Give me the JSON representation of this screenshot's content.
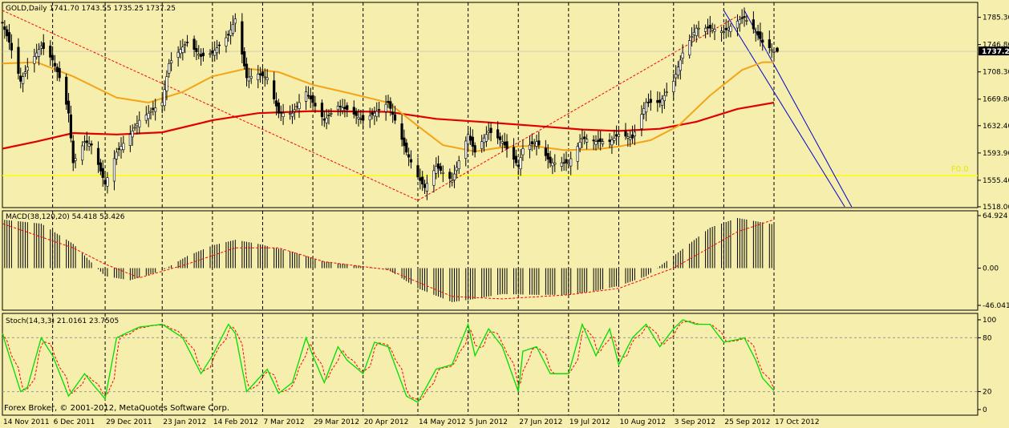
{
  "colors": {
    "background": "#f5eeac",
    "frame": "#000000",
    "candle": "#000000",
    "ma_fast": "#f4a418",
    "ma_slow": "#e00000",
    "channel": "#0000cc",
    "level_line": "#ffff00",
    "fib_line": "#ff0000",
    "macd_signal": "#ff0000",
    "stoch_main": "#00dd00",
    "stoch_signal": "#ff0000",
    "price_marker_bg": "#000000",
    "price_marker_fg": "#ffffff"
  },
  "price_panel": {
    "label": "GOLD,Daily  1741.70 1743.55 1735.25 1737.25",
    "axis_ticks": [
      "1785.30",
      "1746.80",
      "1708.30",
      "1669.80",
      "1632.40",
      "1593.90",
      "1555.40",
      "1518.00"
    ],
    "current_price": "1737.25",
    "level_label": "F0.0"
  },
  "macd_panel": {
    "label": "MACD(38,120,20) 54.418 53.426",
    "axis_ticks": [
      "64.924",
      "0.00",
      "-46.041"
    ]
  },
  "stoch_panel": {
    "label": "Stoch(14,3,3) 21.0161 23.7505",
    "axis_ticks": [
      "100",
      "80",
      "20",
      "0"
    ]
  },
  "copyright": "Forex Broker, © 2001-2012, MetaQuotes Software Corp.",
  "x_axis_labels": [
    "14 Nov 2011",
    "6 Dec 2011",
    "29 Dec 2011",
    "23 Jan 2012",
    "14 Feb 2012",
    "7 Mar 2012",
    "29 Mar 2012",
    "20 Apr 2012",
    "14 May 2012",
    "5 Jun 2012",
    "27 Jun 2012",
    "19 Jul 2012",
    "10 Aug 2012",
    "3 Sep 2012",
    "25 Sep 2012",
    "17 Oct 2012"
  ],
  "chart_data": {
    "type": "candlestick",
    "symbol": "GOLD",
    "timeframe": "Daily",
    "ohlc_last": {
      "open": 1741.7,
      "high": 1743.55,
      "low": 1735.25,
      "close": 1737.25
    },
    "price_ylim": [
      1518.0,
      1795.0
    ],
    "close_path": [
      [
        "14 Nov 2011",
        1777
      ],
      [
        "17 Nov 2011",
        1750
      ],
      [
        "22 Nov 2011",
        1695
      ],
      [
        "25 Nov 2011",
        1715
      ],
      [
        "1 Dec 2011",
        1745
      ],
      [
        "6 Dec 2011",
        1725
      ],
      [
        "9 Dec 2011",
        1700
      ],
      [
        "13 Dec 2011",
        1650
      ],
      [
        "15 Dec 2011",
        1580
      ],
      [
        "20 Dec 2011",
        1610
      ],
      [
        "23 Dec 2011",
        1605
      ],
      [
        "29 Dec 2011",
        1550
      ],
      [
        "3 Jan 2012",
        1595
      ],
      [
        "9 Jan 2012",
        1620
      ],
      [
        "13 Jan 2012",
        1640
      ],
      [
        "23 Jan 2012",
        1665
      ],
      [
        "26 Jan 2012",
        1720
      ],
      [
        "31 Jan 2012",
        1740
      ],
      [
        "3 Feb 2012",
        1750
      ],
      [
        "9 Feb 2012",
        1730
      ],
      [
        "14 Feb 2012",
        1735
      ],
      [
        "21 Feb 2012",
        1760
      ],
      [
        "24 Feb 2012",
        1783
      ],
      [
        "29 Feb 2012",
        1700
      ],
      [
        "5 Mar 2012",
        1705
      ],
      [
        "9 Mar 2012",
        1700
      ],
      [
        "14 Mar 2012",
        1650
      ],
      [
        "20 Mar 2012",
        1650
      ],
      [
        "26 Mar 2012",
        1680
      ],
      [
        "29 Mar 2012",
        1665
      ],
      [
        "3 Apr 2012",
        1640
      ],
      [
        "9 Apr 2012",
        1660
      ],
      [
        "13 Apr 2012",
        1655
      ],
      [
        "20 Apr 2012",
        1640
      ],
      [
        "25 Apr 2012",
        1650
      ],
      [
        "1 May 2012",
        1665
      ],
      [
        "4 May 2012",
        1640
      ],
      [
        "9 May 2012",
        1595
      ],
      [
        "14 May 2012",
        1560
      ],
      [
        "17 May 2012",
        1545
      ],
      [
        "22 May 2012",
        1575
      ],
      [
        "29 May 2012",
        1555
      ],
      [
        "5 Jun 2012",
        1620
      ],
      [
        "8 Jun 2012",
        1595
      ],
      [
        "14 Jun 2012",
        1625
      ],
      [
        "20 Jun 2012",
        1610
      ],
      [
        "27 Jun 2012",
        1575
      ],
      [
        "29 Jun 2012",
        1600
      ],
      [
        "5 Jul 2012",
        1610
      ],
      [
        "11 Jul 2012",
        1580
      ],
      [
        "19 Jul 2012",
        1580
      ],
      [
        "25 Jul 2012",
        1615
      ],
      [
        "31 Jul 2012",
        1610
      ],
      [
        "6 Aug 2012",
        1610
      ],
      [
        "10 Aug 2012",
        1620
      ],
      [
        "16 Aug 2012",
        1615
      ],
      [
        "22 Aug 2012",
        1665
      ],
      [
        "28 Aug 2012",
        1665
      ],
      [
        "3 Sep 2012",
        1695
      ],
      [
        "7 Sep 2012",
        1735
      ],
      [
        "13 Sep 2012",
        1770
      ],
      [
        "19 Sep 2012",
        1770
      ],
      [
        "25 Sep 2012",
        1765
      ],
      [
        "1 Oct 2012",
        1780
      ],
      [
        "4 Oct 2012",
        1785
      ],
      [
        "9 Oct 2012",
        1765
      ],
      [
        "12 Oct 2012",
        1750
      ],
      [
        "17 Oct 2012",
        1737
      ]
    ],
    "ma_fast": [
      [
        "14 Nov 2011",
        1720
      ],
      [
        "29 Nov 2011",
        1722
      ],
      [
        "15 Dec 2011",
        1702
      ],
      [
        "3 Jan 2012",
        1672
      ],
      [
        "17 Jan 2012",
        1665
      ],
      [
        "1 Feb 2012",
        1680
      ],
      [
        "14 Feb 2012",
        1702
      ],
      [
        "29 Feb 2012",
        1713
      ],
      [
        "14 Mar 2012",
        1708
      ],
      [
        "29 Mar 2012",
        1690
      ],
      [
        "13 Apr 2012",
        1679
      ],
      [
        "1 May 2012",
        1665
      ],
      [
        "14 May 2012",
        1632
      ],
      [
        "25 May 2012",
        1605
      ],
      [
        "8 Jun 2012",
        1596
      ],
      [
        "20 Jun 2012",
        1602
      ],
      [
        "3 Jul 2012",
        1604
      ],
      [
        "17 Jul 2012",
        1598
      ],
      [
        "31 Jul 2012",
        1599
      ],
      [
        "10 Aug 2012",
        1603
      ],
      [
        "24 Aug 2012",
        1612
      ],
      [
        "5 Sep 2012",
        1632
      ],
      [
        "19 Sep 2012",
        1675
      ],
      [
        "3 Oct 2012",
        1711
      ],
      [
        "12 Oct 2012",
        1722
      ],
      [
        "17 Oct 2012",
        1722
      ]
    ],
    "ma_slow": [
      [
        "14 Nov 2011",
        1600
      ],
      [
        "29 Nov 2011",
        1610
      ],
      [
        "15 Dec 2011",
        1622
      ],
      [
        "3 Jan 2012",
        1620
      ],
      [
        "23 Jan 2012",
        1623
      ],
      [
        "14 Feb 2012",
        1640
      ],
      [
        "5 Mar 2012",
        1650
      ],
      [
        "29 Mar 2012",
        1653
      ],
      [
        "1 May 2012",
        1652
      ],
      [
        "22 May 2012",
        1642
      ],
      [
        "14 Jun 2012",
        1637
      ],
      [
        "5 Jul 2012",
        1632
      ],
      [
        "25 Jul 2012",
        1627
      ],
      [
        "10 Aug 2012",
        1625
      ],
      [
        "28 Aug 2012",
        1628
      ],
      [
        "13 Sep 2012",
        1638
      ],
      [
        "1 Oct 2012",
        1656
      ],
      [
        "17 Oct 2012",
        1665
      ]
    ],
    "horizontal_level": 1562,
    "fib_lines": [
      [
        [
          "14 Nov 2011",
          1795
        ],
        [
          "14 May 2012",
          1527
        ]
      ],
      [
        [
          "14 May 2012",
          1527
        ],
        [
          "1 Oct 2012",
          1787
        ]
      ]
    ],
    "channel_lines": [
      [
        [
          "25 Sep 2012",
          1795
        ],
        [
          "17 Nov 2012",
          1518
        ]
      ],
      [
        [
          "4 Oct 2012",
          1795
        ],
        [
          "20 Nov 2012",
          1518
        ]
      ]
    ],
    "macd": {
      "params": [
        38,
        120,
        20
      ],
      "main": 54.418,
      "signal": 53.426,
      "ylim": [
        -46.041,
        64.924
      ],
      "histogram_path": [
        [
          "14 Nov 2011",
          60
        ],
        [
          "1 Dec 2011",
          55
        ],
        [
          "15 Dec 2011",
          30
        ],
        [
          "29 Dec 2011",
          -10
        ],
        [
          "9 Jan 2012",
          -15
        ],
        [
          "23 Jan 2012",
          -3
        ],
        [
          "3 Feb 2012",
          15
        ],
        [
          "14 Feb 2012",
          28
        ],
        [
          "24 Feb 2012",
          35
        ],
        [
          "5 Mar 2012",
          30
        ],
        [
          "20 Mar 2012",
          20
        ],
        [
          "3 Apr 2012",
          8
        ],
        [
          "20 Apr 2012",
          2
        ],
        [
          "1 May 2012",
          -2
        ],
        [
          "14 May 2012",
          -25
        ],
        [
          "29 May 2012",
          -42
        ],
        [
          "8 Jun 2012",
          -38
        ],
        [
          "20 Jun 2012",
          -32
        ],
        [
          "5 Jul 2012",
          -33
        ],
        [
          "19 Jul 2012",
          -33
        ],
        [
          "31 Jul 2012",
          -28
        ],
        [
          "10 Aug 2012",
          -22
        ],
        [
          "22 Aug 2012",
          -10
        ],
        [
          "3 Sep 2012",
          15
        ],
        [
          "19 Sep 2012",
          50
        ],
        [
          "1 Oct 2012",
          62
        ],
        [
          "17 Oct 2012",
          54
        ]
      ],
      "signal_path": [
        [
          "14 Nov 2011",
          55
        ],
        [
          "15 Dec 2011",
          25
        ],
        [
          "29 Dec 2011",
          5
        ],
        [
          "13 Jan 2012",
          -12
        ],
        [
          "3 Feb 2012",
          5
        ],
        [
          "24 Feb 2012",
          25
        ],
        [
          "14 Mar 2012",
          25
        ],
        [
          "3 Apr 2012",
          8
        ],
        [
          "1 May 2012",
          -2
        ],
        [
          "29 May 2012",
          -35
        ],
        [
          "20 Jun 2012",
          -38
        ],
        [
          "19 Jul 2012",
          -33
        ],
        [
          "10 Aug 2012",
          -25
        ],
        [
          "3 Sep 2012",
          0
        ],
        [
          "1 Oct 2012",
          45
        ],
        [
          "17 Oct 2012",
          60
        ]
      ]
    },
    "stochastic": {
      "params": [
        14,
        3,
        3
      ],
      "main": 21.0161,
      "signal": 23.7505,
      "ylim": [
        0,
        100
      ],
      "levels": [
        80,
        20
      ],
      "main_path": [
        [
          "14 Nov 2011",
          85
        ],
        [
          "17 Nov 2011",
          60
        ],
        [
          "22 Nov 2011",
          20
        ],
        [
          "25 Nov 2011",
          25
        ],
        [
          "1 Dec 2011",
          80
        ],
        [
          "6 Dec 2011",
          60
        ],
        [
          "13 Dec 2011",
          15
        ],
        [
          "20 Dec 2011",
          40
        ],
        [
          "23 Dec 2011",
          30
        ],
        [
          "29 Dec 2011",
          12
        ],
        [
          "3 Jan 2012",
          80
        ],
        [
          "13 Jan 2012",
          92
        ],
        [
          "23 Jan 2012",
          95
        ],
        [
          "1 Feb 2012",
          80
        ],
        [
          "9 Feb 2012",
          40
        ],
        [
          "14 Feb 2012",
          60
        ],
        [
          "21 Feb 2012",
          95
        ],
        [
          "24 Feb 2012",
          85
        ],
        [
          "29 Feb 2012",
          20
        ],
        [
          "9 Mar 2012",
          45
        ],
        [
          "14 Mar 2012",
          18
        ],
        [
          "20 Mar 2012",
          30
        ],
        [
          "26 Mar 2012",
          80
        ],
        [
          "29 Mar 2012",
          60
        ],
        [
          "3 Apr 2012",
          30
        ],
        [
          "9 Apr 2012",
          70
        ],
        [
          "13 Apr 2012",
          55
        ],
        [
          "20 Apr 2012",
          40
        ],
        [
          "25 Apr 2012",
          75
        ],
        [
          "1 May 2012",
          70
        ],
        [
          "9 May 2012",
          15
        ],
        [
          "14 May 2012",
          8
        ],
        [
          "22 May 2012",
          45
        ],
        [
          "29 May 2012",
          50
        ],
        [
          "5 Jun 2012",
          95
        ],
        [
          "8 Jun 2012",
          60
        ],
        [
          "14 Jun 2012",
          90
        ],
        [
          "20 Jun 2012",
          70
        ],
        [
          "27 Jun 2012",
          20
        ],
        [
          "29 Jun 2012",
          65
        ],
        [
          "5 Jul 2012",
          70
        ],
        [
          "11 Jul 2012",
          40
        ],
        [
          "19 Jul 2012",
          40
        ],
        [
          "25 Jul 2012",
          95
        ],
        [
          "31 Jul 2012",
          60
        ],
        [
          "6 Aug 2012",
          90
        ],
        [
          "10 Aug 2012",
          50
        ],
        [
          "16 Aug 2012",
          80
        ],
        [
          "22 Aug 2012",
          95
        ],
        [
          "28 Aug 2012",
          70
        ],
        [
          "3 Sep 2012",
          90
        ],
        [
          "7 Sep 2012",
          100
        ],
        [
          "13 Sep 2012",
          95
        ],
        [
          "19 Sep 2012",
          95
        ],
        [
          "25 Sep 2012",
          75
        ],
        [
          "1 Oct 2012",
          78
        ],
        [
          "4 Oct 2012",
          80
        ],
        [
          "9 Oct 2012",
          55
        ],
        [
          "12 Oct 2012",
          35
        ],
        [
          "17 Oct 2012",
          21
        ]
      ]
    }
  }
}
